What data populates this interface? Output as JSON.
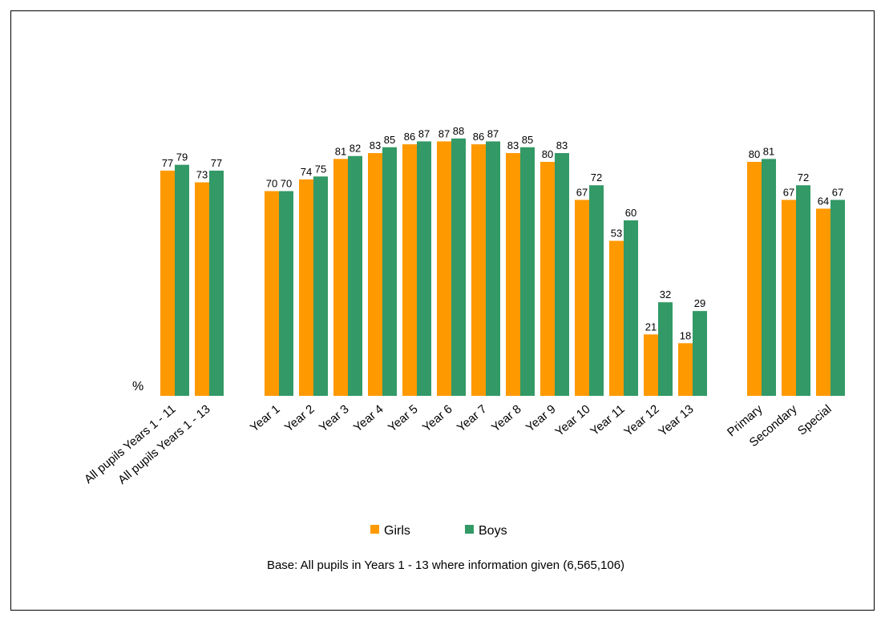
{
  "chart_data": {
    "type": "bar",
    "ylabel": "%",
    "ylim": [
      0,
      100
    ],
    "grid": false,
    "legend_position": "bottom",
    "categories": [
      "All pupils Years 1 - 11",
      "All pupils Years 1 - 13",
      "Year 1",
      "Year 2",
      "Year 3",
      "Year 4",
      "Year 5",
      "Year 6",
      "Year 7",
      "Year 8",
      "Year 9",
      "Year 10",
      "Year 11",
      "Year 12",
      "Year 13",
      "Primary",
      "Secondary",
      "Special"
    ],
    "series": [
      {
        "name": "Girls",
        "color": "#ff9900",
        "values": [
          77,
          73,
          70,
          74,
          81,
          83,
          86,
          87,
          86,
          83,
          80,
          67,
          53,
          21,
          18,
          80,
          67,
          64
        ]
      },
      {
        "name": "Boys",
        "color": "#339966",
        "values": [
          79,
          77,
          70,
          75,
          82,
          85,
          87,
          88,
          87,
          85,
          83,
          72,
          60,
          32,
          29,
          81,
          72,
          67
        ]
      }
    ],
    "note": "Base: All pupils in Years 1 - 13 where information given (6,565,106)"
  }
}
